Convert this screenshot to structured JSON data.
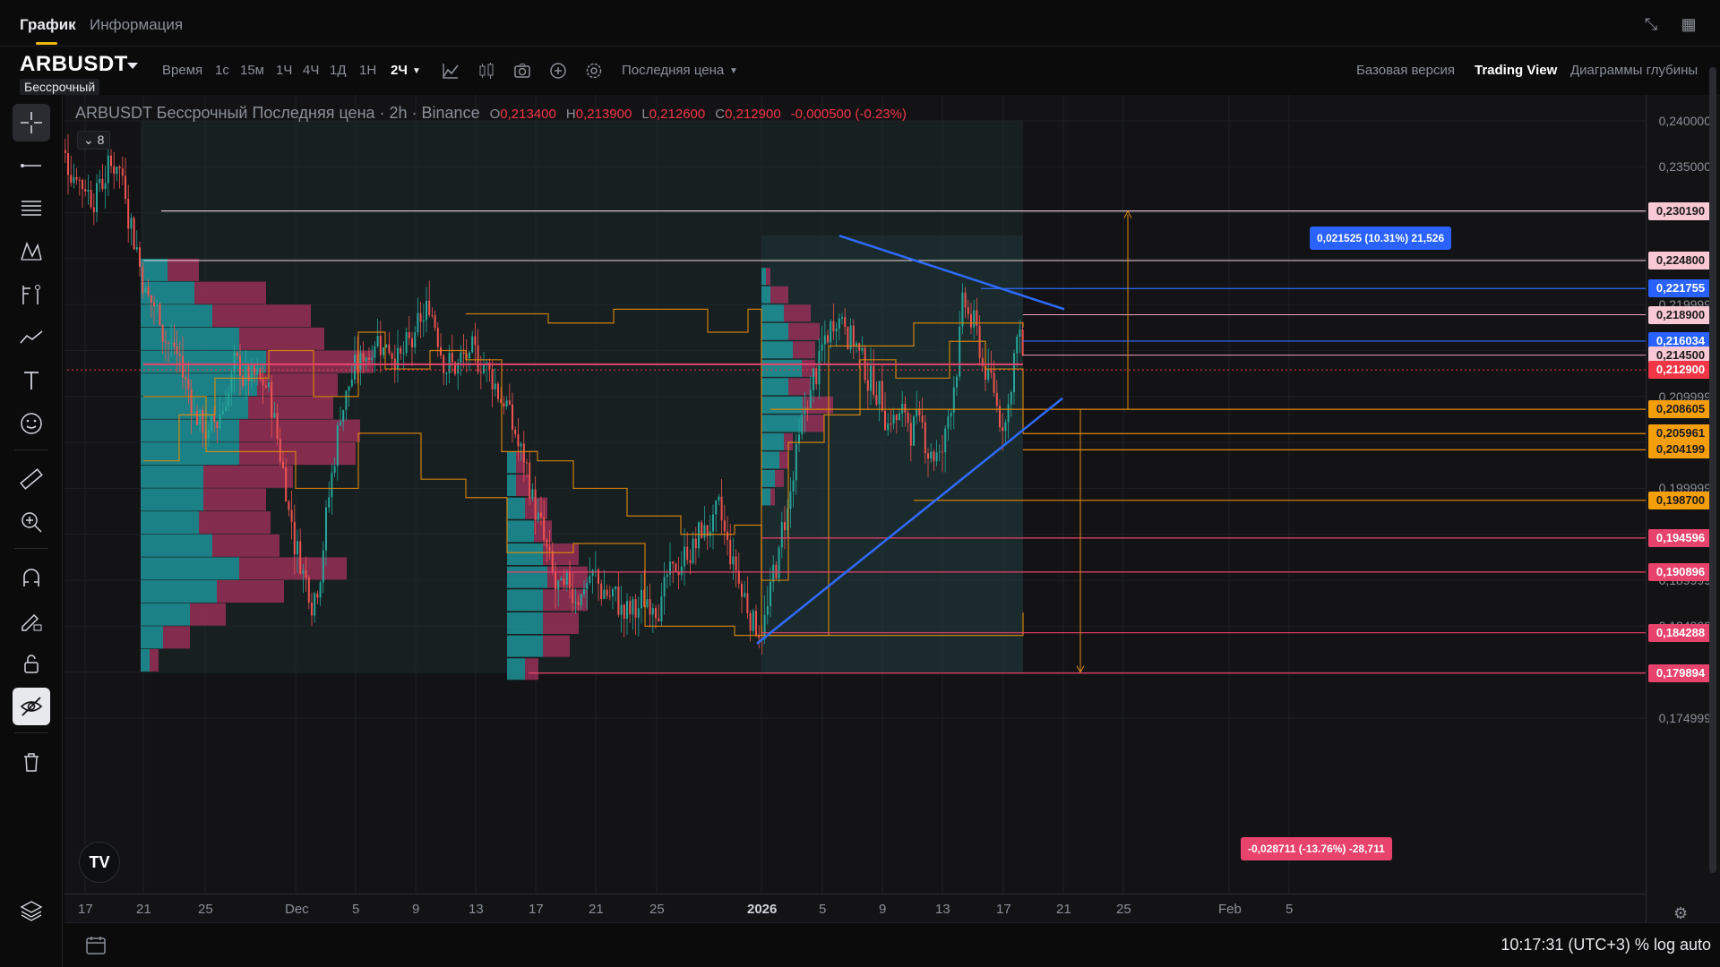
{
  "tabs": {
    "chart": "График",
    "info": "Информация"
  },
  "toolbar": {
    "symbol": "ARBUSDT",
    "perpetual": "Бессрочный",
    "time_label": "Время",
    "timeframes": [
      "1с",
      "15м",
      "1Ч",
      "4Ч",
      "1Д",
      "1Н"
    ],
    "active_tf": "2Ч",
    "price_type": "Последняя цена",
    "basic": "Базовая версия",
    "tradingview": "Trading View",
    "depth": "Диаграммы глубины"
  },
  "legend": {
    "title": "ARBUSDT Бессрочный Последняя цена · 2h · Binance",
    "o_label": "O",
    "o": "0,213400",
    "h_label": "H",
    "h": "0,213900",
    "l_label": "L",
    "l": "0,212600",
    "c_label": "C",
    "c": "0,212900",
    "change": "-0,000500 (-0.23%)",
    "indicators_count": "8"
  },
  "price_scale": [
    "0,240000",
    "0,235000",
    "0,219999",
    "0,209999",
    "0,199999",
    "0,189999",
    "0,184999",
    "0,174999"
  ],
  "price_badges": [
    {
      "text": "0,230190",
      "bg": "#f8c8d4",
      "fg": "#1a1a1a",
      "price": 0.23019
    },
    {
      "text": "0,224800",
      "bg": "#f8c8d4",
      "fg": "#1a1a1a",
      "price": 0.2248
    },
    {
      "text": "0,221755",
      "bg": "#2962ff",
      "fg": "#ffffff",
      "price": 0.221755
    },
    {
      "text": "0,218900",
      "bg": "#f8c8d4",
      "fg": "#1a1a1a",
      "price": 0.2189
    },
    {
      "text": "0,216034",
      "bg": "#2962ff",
      "fg": "#ffffff",
      "price": 0.216034
    },
    {
      "text": "0,214500",
      "bg": "#f8c8d4",
      "fg": "#1a1a1a",
      "price": 0.2145
    },
    {
      "text": "0,212900",
      "bg": "#f23645",
      "fg": "#ffffff",
      "price": 0.2129
    },
    {
      "text": "0,208605",
      "bg": "#f59e0b",
      "fg": "#1a1a1a",
      "price": 0.208605
    },
    {
      "text": "0,205961",
      "bg": "#f59e0b",
      "fg": "#1a1a1a",
      "price": 0.205961
    },
    {
      "text": "0,204199",
      "bg": "#f59e0b",
      "fg": "#1a1a1a",
      "price": 0.204199
    },
    {
      "text": "0,198700",
      "bg": "#f59e0b",
      "fg": "#1a1a1a",
      "price": 0.1987
    },
    {
      "text": "0,194596",
      "bg": "#e8436c",
      "fg": "#ffffff",
      "price": 0.194596
    },
    {
      "text": "0,190896",
      "bg": "#e8436c",
      "fg": "#ffffff",
      "price": 0.190896
    },
    {
      "text": "0,184288",
      "bg": "#e8436c",
      "fg": "#ffffff",
      "price": 0.184288
    },
    {
      "text": "0,179894",
      "bg": "#e8436c",
      "fg": "#ffffff",
      "price": 0.179894
    }
  ],
  "time_axis": [
    "17",
    "21",
    "25",
    "Dec",
    "5",
    "9",
    "13",
    "17",
    "21",
    "25",
    "2026",
    "5",
    "9",
    "13",
    "17",
    "21",
    "25",
    "Feb",
    "5"
  ],
  "measure_up": "0,021525 (10.31%) 21,526",
  "measure_down": "-0,028711 (-13.76%) -28,711",
  "clock": "10:17:31 (UTC+3)   % log auto",
  "colors": {
    "bull": "#26a69a",
    "bear": "#ef5350",
    "vp_up": "#1fa3a8",
    "vp_down": "#a8325e",
    "trend": "#2f6bff",
    "level": "#e08a0b"
  }
}
